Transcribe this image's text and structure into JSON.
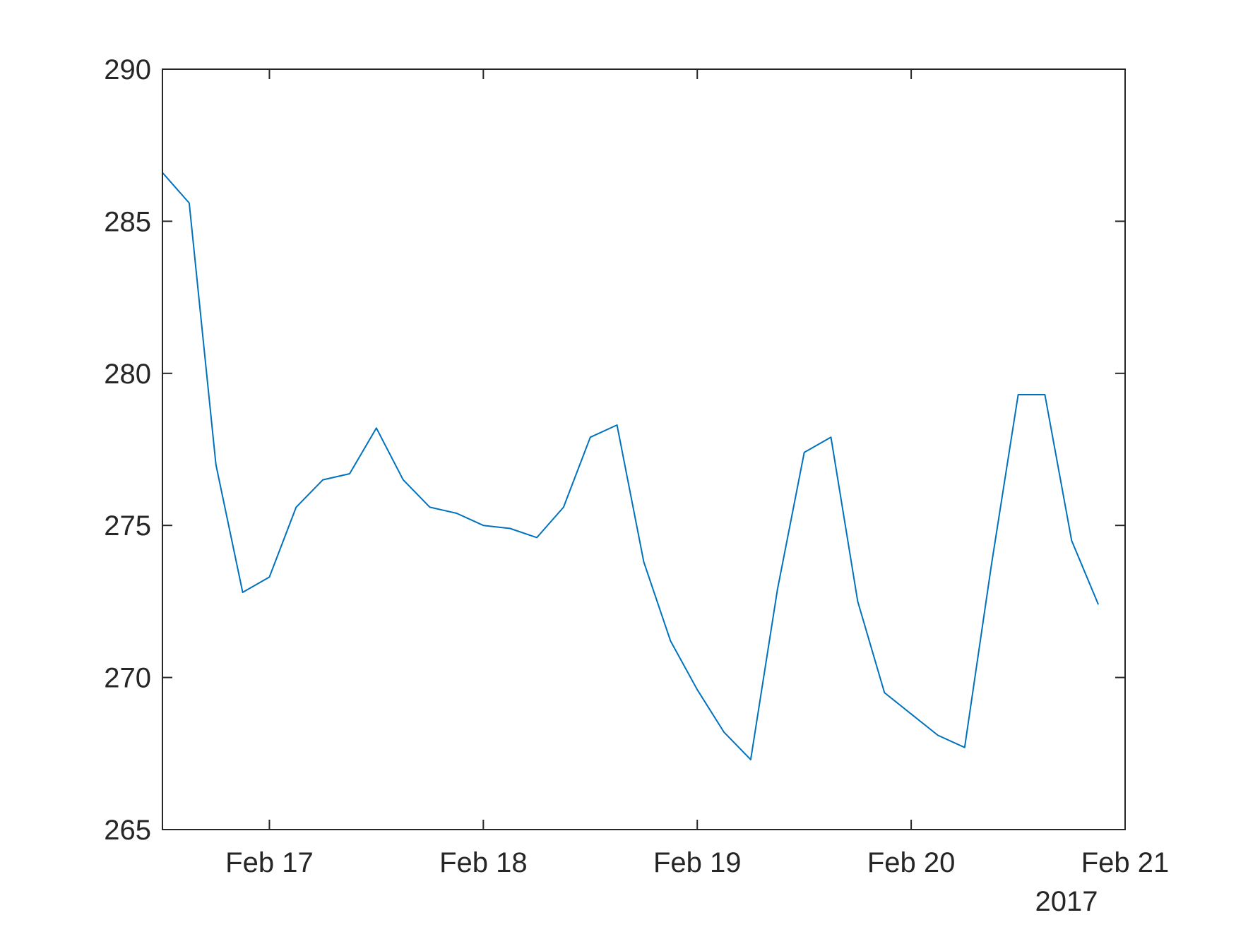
{
  "chart_data": {
    "type": "line",
    "title": "",
    "xlabel": "",
    "ylabel": "",
    "x_axis": {
      "type": "datetime",
      "range": [
        "2017-02-16T12:00",
        "2017-02-21T00:00"
      ],
      "ticks": [
        {
          "value": "2017-02-17T00:00",
          "label": "Feb 17"
        },
        {
          "value": "2017-02-18T00:00",
          "label": "Feb 18"
        },
        {
          "value": "2017-02-19T00:00",
          "label": "Feb 19"
        },
        {
          "value": "2017-02-20T00:00",
          "label": "Feb 20"
        },
        {
          "value": "2017-02-21T00:00",
          "label": "Feb 21"
        }
      ],
      "secondary_label": "2017"
    },
    "y_axis": {
      "range": [
        265,
        290
      ],
      "ticks": [
        265,
        270,
        275,
        280,
        285,
        290
      ]
    },
    "grid": false,
    "legend": "none",
    "series": [
      {
        "color": "#0072BD",
        "points": [
          {
            "x": "2017-02-16T12:00",
            "y": 286.6
          },
          {
            "x": "2017-02-16T15:00",
            "y": 285.6
          },
          {
            "x": "2017-02-16T18:00",
            "y": 277.0
          },
          {
            "x": "2017-02-16T21:00",
            "y": 272.8
          },
          {
            "x": "2017-02-17T00:00",
            "y": 273.3
          },
          {
            "x": "2017-02-17T03:00",
            "y": 275.6
          },
          {
            "x": "2017-02-17T06:00",
            "y": 276.5
          },
          {
            "x": "2017-02-17T09:00",
            "y": 276.7
          },
          {
            "x": "2017-02-17T12:00",
            "y": 278.2
          },
          {
            "x": "2017-02-17T15:00",
            "y": 276.5
          },
          {
            "x": "2017-02-17T18:00",
            "y": 275.6
          },
          {
            "x": "2017-02-17T21:00",
            "y": 275.4
          },
          {
            "x": "2017-02-18T00:00",
            "y": 275.0
          },
          {
            "x": "2017-02-18T03:00",
            "y": 274.9
          },
          {
            "x": "2017-02-18T06:00",
            "y": 274.6
          },
          {
            "x": "2017-02-18T09:00",
            "y": 275.6
          },
          {
            "x": "2017-02-18T12:00",
            "y": 277.9
          },
          {
            "x": "2017-02-18T15:00",
            "y": 278.3
          },
          {
            "x": "2017-02-18T18:00",
            "y": 273.8
          },
          {
            "x": "2017-02-18T21:00",
            "y": 271.2
          },
          {
            "x": "2017-02-19T00:00",
            "y": 269.6
          },
          {
            "x": "2017-02-19T03:00",
            "y": 268.2
          },
          {
            "x": "2017-02-19T06:00",
            "y": 267.3
          },
          {
            "x": "2017-02-19T09:00",
            "y": 272.9
          },
          {
            "x": "2017-02-19T12:00",
            "y": 277.4
          },
          {
            "x": "2017-02-19T15:00",
            "y": 277.9
          },
          {
            "x": "2017-02-19T18:00",
            "y": 272.5
          },
          {
            "x": "2017-02-19T21:00",
            "y": 269.5
          },
          {
            "x": "2017-02-20T00:00",
            "y": 268.8
          },
          {
            "x": "2017-02-20T03:00",
            "y": 268.1
          },
          {
            "x": "2017-02-20T06:00",
            "y": 267.7
          },
          {
            "x": "2017-02-20T09:00",
            "y": 273.7
          },
          {
            "x": "2017-02-20T12:00",
            "y": 279.3
          },
          {
            "x": "2017-02-20T15:00",
            "y": 279.3
          },
          {
            "x": "2017-02-20T18:00",
            "y": 274.5
          },
          {
            "x": "2017-02-20T21:00",
            "y": 272.4
          }
        ]
      }
    ]
  }
}
